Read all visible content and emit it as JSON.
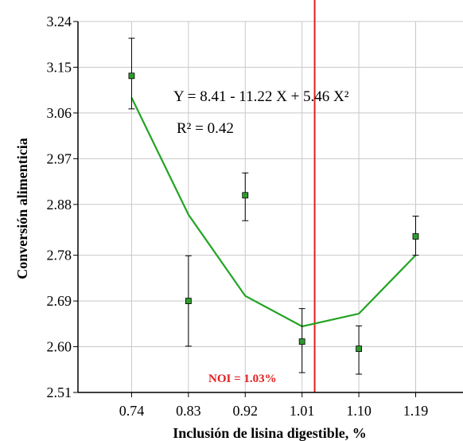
{
  "chart_data": {
    "type": "scatter",
    "title": "",
    "xlabel": "Inclusión de lisina digestible, %",
    "ylabel": "Conversión alimenticia",
    "x_ticks": [
      "0.74",
      "0.83",
      "0.92",
      "1.01",
      "1.10",
      "1.19"
    ],
    "y_ticks": [
      "2.51",
      "2.60",
      "2.69",
      "2.78",
      "2.88",
      "2.97",
      "3.06",
      "3.15",
      "3.24"
    ],
    "xlim": [
      0.655,
      1.265
    ],
    "ylim": [
      2.51,
      3.24
    ],
    "grid": true,
    "series": [
      {
        "kind": "observed",
        "x": [
          0.74,
          0.83,
          0.92,
          1.01,
          1.1,
          1.19
        ],
        "y": [
          3.133,
          2.69,
          2.898,
          2.61,
          2.596,
          2.817
        ],
        "err_low": [
          3.068,
          2.601,
          2.848,
          2.549,
          2.546,
          2.78
        ],
        "err_high": [
          3.207,
          2.779,
          2.942,
          2.675,
          2.641,
          2.857
        ],
        "color": "#2e9c2e"
      },
      {
        "kind": "fitted",
        "x": [
          0.74,
          0.83,
          0.92,
          1.01,
          1.1,
          1.19
        ],
        "y": [
          3.09,
          2.86,
          2.7,
          2.64,
          2.665,
          2.78
        ],
        "color": "#22a322"
      }
    ],
    "vline": {
      "x": 1.03,
      "label": "NOI = 1.03%",
      "color": "#e01f1f"
    },
    "equation": "Y = 8.41 - 11.22 X + 5.46 X²",
    "r2": "R² = 0.42"
  }
}
